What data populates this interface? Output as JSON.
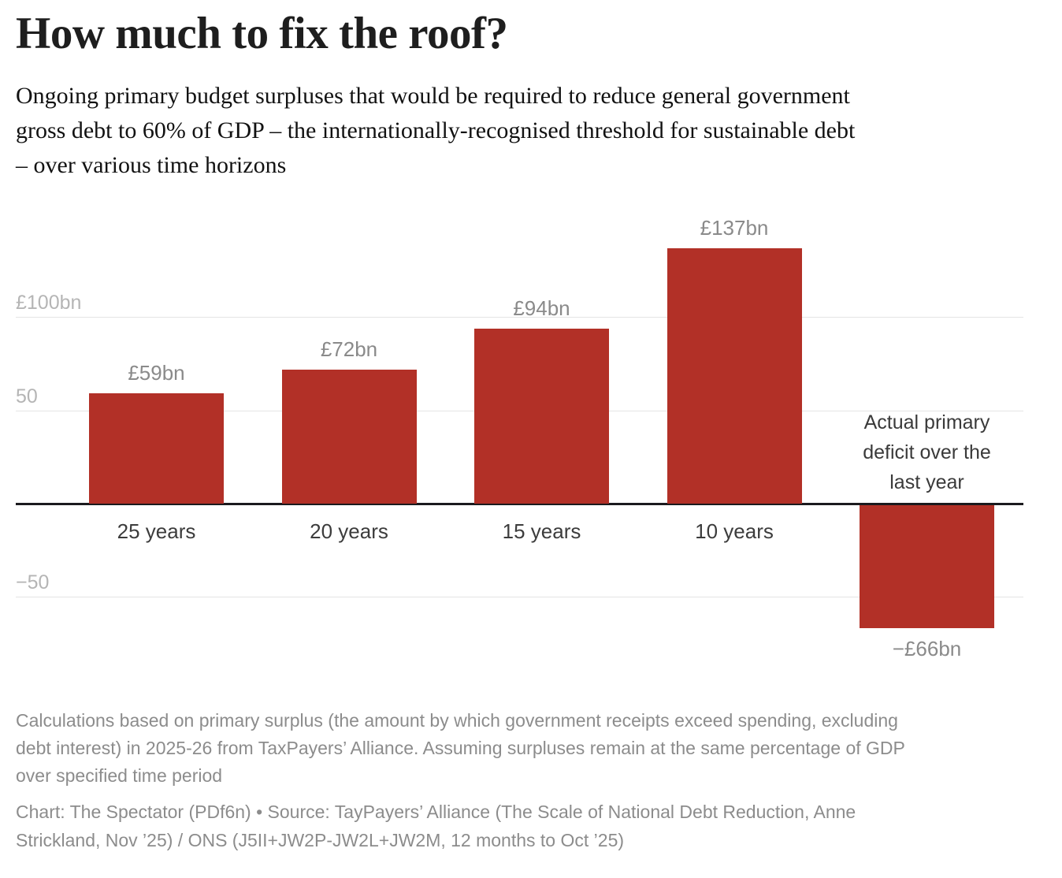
{
  "header": {
    "title": "How much to fix the roof?",
    "subtitle_lines": [
      "Ongoing primary budget surpluses that would be required to reduce general government",
      "gross debt to 60% of GDP – the internationally-recognised threshold for sustainable debt",
      "– over various time horizons"
    ]
  },
  "chart_data": {
    "type": "bar",
    "title": "How much to fix the roof?",
    "subtitle": "Ongoing primary budget surpluses that would be required to reduce general government gross debt to 60% of GDP – the internationally-recognised threshold for sustainable debt – over various time horizons",
    "categories": [
      "25 years",
      "20 years",
      "15 years",
      "10 years",
      "Actual primary deficit over the last year"
    ],
    "values": [
      59,
      72,
      94,
      137,
      -66
    ],
    "bar_labels": [
      "£59bn",
      "£72bn",
      "£94bn",
      "£137bn",
      "−£66bn"
    ],
    "x_tick_labels": [
      "25 years",
      "20 years",
      "15 years",
      "10 years",
      ""
    ],
    "annotation": {
      "bar_index": 4,
      "lines": [
        "Actual primary",
        "deficit over the",
        "last year"
      ]
    },
    "yticks": [
      {
        "value": 100,
        "label": "£100bn"
      },
      {
        "value": 50,
        "label": "50"
      },
      {
        "value": -50,
        "label": "−50"
      }
    ],
    "baseline_value": 0,
    "ylim": [
      -93,
      160
    ],
    "unit": "£bn",
    "bar_color": "#b23027",
    "grid": "horizontal",
    "legend": "none"
  },
  "footer": {
    "note_lines": [
      "Calculations based on primary surplus (the amount by which government receipts exceed spending, excluding",
      "debt interest) in 2025-26 from TaxPayers’ Alliance. Assuming surpluses remain at the same percentage of GDP",
      "over specified time period"
    ],
    "source_lines": [
      "Chart: The Spectator (PDf6n) • Source: TayPayers’ Alliance (The Scale of National Debt Reduction, Anne",
      "Strickland, Nov ’25) / ONS (J5II+JW2P-JW2L+JW2M, 12 months to Oct ’25)"
    ]
  }
}
